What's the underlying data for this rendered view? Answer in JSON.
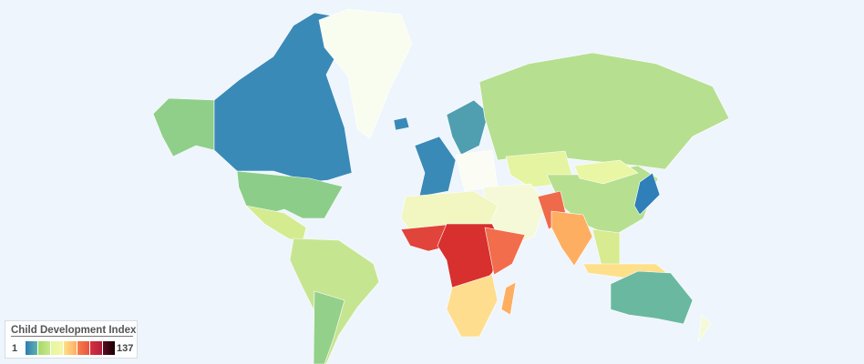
{
  "legend": {
    "title": "Child Development Index",
    "min": "1",
    "max": "137",
    "segments": [
      [
        "#2c7bb6",
        "#5fb3a8"
      ],
      [
        "#a6d96a",
        "#c7e98a"
      ],
      [
        "#e6f5a0",
        "#f3f7a8"
      ],
      [
        "#fee08b",
        "#fdae61"
      ],
      [
        "#f67e4b",
        "#e9553e"
      ],
      [
        "#d7303f",
        "#b0203a"
      ],
      [
        "#5a0c20",
        "#1a0005"
      ]
    ]
  },
  "map": {
    "background": "#eef5fc",
    "regions": [
      {
        "name": "alaska",
        "fill": "#8fcf8a"
      },
      {
        "name": "canada",
        "fill": "#3a8ab8"
      },
      {
        "name": "greenland",
        "fill": "#f9fdf0"
      },
      {
        "name": "usa",
        "fill": "#8ccd8a"
      },
      {
        "name": "mexico-central-america",
        "fill": "#d5eb90"
      },
      {
        "name": "south-america",
        "fill": "#c6e591"
      },
      {
        "name": "argentina-chile",
        "fill": "#93d08a"
      },
      {
        "name": "iceland",
        "fill": "#3a8ab8"
      },
      {
        "name": "western-europe",
        "fill": "#3a8ab8"
      },
      {
        "name": "scandinavia",
        "fill": "#4f9fb0"
      },
      {
        "name": "eastern-europe",
        "fill": "#fbfdf4"
      },
      {
        "name": "russia",
        "fill": "#b6df90"
      },
      {
        "name": "central-asia",
        "fill": "#e4f4a0"
      },
      {
        "name": "china",
        "fill": "#b6df90"
      },
      {
        "name": "mongolia",
        "fill": "#e9f6a4"
      },
      {
        "name": "japan",
        "fill": "#2f7fb8"
      },
      {
        "name": "middle-east",
        "fill": "#f6f9d8"
      },
      {
        "name": "pakistan-afghanistan",
        "fill": "#ee6a4a"
      },
      {
        "name": "india",
        "fill": "#fdae61"
      },
      {
        "name": "southeast-asia",
        "fill": "#d8eb90"
      },
      {
        "name": "indonesia",
        "fill": "#fee08b"
      },
      {
        "name": "australia",
        "fill": "#6ab8a0"
      },
      {
        "name": "new-zealand",
        "fill": "#f4f9d8"
      },
      {
        "name": "north-africa",
        "fill": "#f2f6c0"
      },
      {
        "name": "west-africa",
        "fill": "#e0443a"
      },
      {
        "name": "central-africa",
        "fill": "#d7302f"
      },
      {
        "name": "east-africa",
        "fill": "#f26d4b"
      },
      {
        "name": "southern-africa",
        "fill": "#fedd8e"
      },
      {
        "name": "madagascar",
        "fill": "#fdae61"
      }
    ]
  }
}
